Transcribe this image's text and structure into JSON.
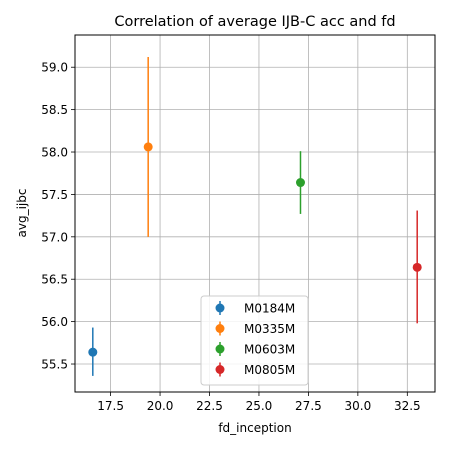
{
  "chart_data": {
    "type": "scatter",
    "title": "Correlation of average IJB-C acc and fd",
    "xlabel": "fd_inception",
    "ylabel": "avg_ijbc",
    "xlim": [
      15.7,
      33.9
    ],
    "ylim": [
      55.17,
      59.38
    ],
    "xticks": [
      "17.5",
      "20.0",
      "22.5",
      "25.0",
      "27.5",
      "30.0",
      "32.5"
    ],
    "yticks": [
      "55.5",
      "56.0",
      "56.5",
      "57.0",
      "57.5",
      "58.0",
      "58.5",
      "59.0"
    ],
    "grid": true,
    "legend_position": "lower center",
    "series": [
      {
        "name": "M0184M",
        "color": "#1f77b4",
        "x": 16.6,
        "y": 55.64,
        "err_low": 55.36,
        "err_high": 55.93
      },
      {
        "name": "M0335M",
        "color": "#ff7f0e",
        "x": 19.4,
        "y": 58.06,
        "err_low": 57.0,
        "err_high": 59.12
      },
      {
        "name": "M0603M",
        "color": "#2ca02c",
        "x": 27.1,
        "y": 57.64,
        "err_low": 57.27,
        "err_high": 58.01
      },
      {
        "name": "M0805M",
        "color": "#d62728",
        "x": 33.0,
        "y": 56.64,
        "err_low": 55.98,
        "err_high": 57.31
      }
    ]
  }
}
